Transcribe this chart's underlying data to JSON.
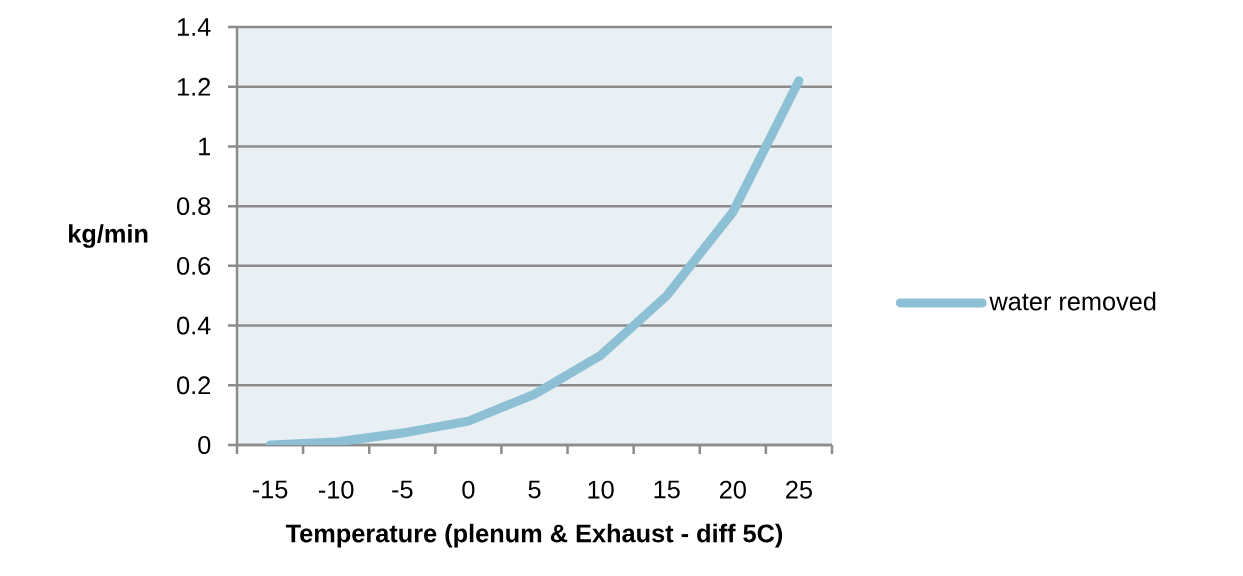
{
  "chart_data": {
    "type": "line",
    "xlabel": "Temperature (plenum & Exhaust - diff 5C)",
    "ylabel": "kg/min",
    "categories": [
      "-15",
      "-10",
      "-5",
      "0",
      "5",
      "10",
      "15",
      "20",
      "25"
    ],
    "series": [
      {
        "name": "water removed",
        "color": "#8dc0d4",
        "values": [
          0,
          0.01,
          0.04,
          0.08,
          0.17,
          0.3,
          0.5,
          0.78,
          1.22
        ]
      }
    ],
    "ylim": [
      0,
      1.4
    ],
    "yticks": [
      0,
      0.2,
      0.4,
      0.6,
      0.8,
      1,
      1.2,
      1.4
    ],
    "grid": "y",
    "legend": "right",
    "marker": "none"
  }
}
